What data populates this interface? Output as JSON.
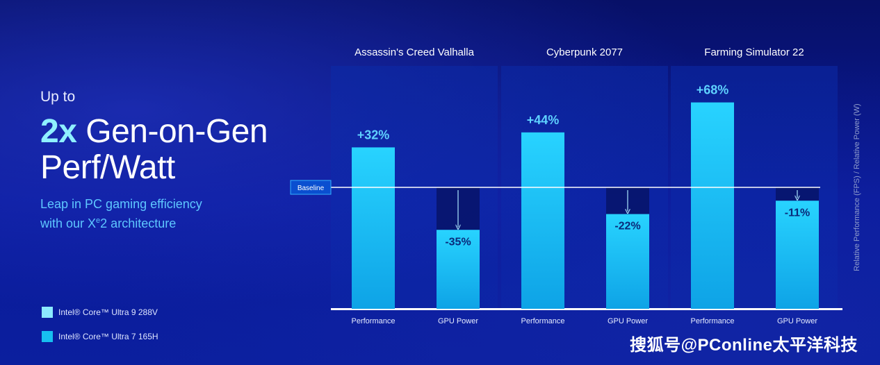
{
  "headline": {
    "upto": "Up to",
    "accent": "2x",
    "line1_rest": "Gen-on-Gen",
    "line2": "Perf/Watt"
  },
  "subtitle": {
    "line1": "Leap in PC gaming efficiency",
    "line2_pre": "with our X",
    "line2_sup": "e",
    "line2_post": "2 architecture"
  },
  "legend": [
    {
      "name": "Intel® Core™ Ultra 9 288V",
      "color": "#8be9ff"
    },
    {
      "name": "Intel® Core™ Ultra 7 165H",
      "color": "#17bff0"
    }
  ],
  "watermark": "搜狐号@PConline太平洋科技",
  "chart_data": {
    "type": "bar",
    "baseline_label": "Baseline",
    "ylabel": "Relative Performance (FPS) / Relative Power (W)",
    "groups": [
      {
        "title": "Assassin's Creed Valhalla",
        "bars": [
          {
            "category": "Performance",
            "change": 32,
            "label": "+32%"
          },
          {
            "category": "GPU Power",
            "change": -35,
            "label": "-35%"
          }
        ]
      },
      {
        "title": "Cyberpunk 2077",
        "bars": [
          {
            "category": "Performance",
            "change": 44,
            "label": "+44%"
          },
          {
            "category": "GPU Power",
            "change": -22,
            "label": "-22%"
          }
        ]
      },
      {
        "title": "Farming Simulator 22",
        "bars": [
          {
            "category": "Performance",
            "change": 68,
            "label": "+68%"
          },
          {
            "category": "GPU Power",
            "change": -11,
            "label": "-11%"
          }
        ]
      }
    ],
    "colors": {
      "bar": "#1bc8f6",
      "label": "#5fd2ff",
      "baseline": "#ffffff"
    }
  }
}
